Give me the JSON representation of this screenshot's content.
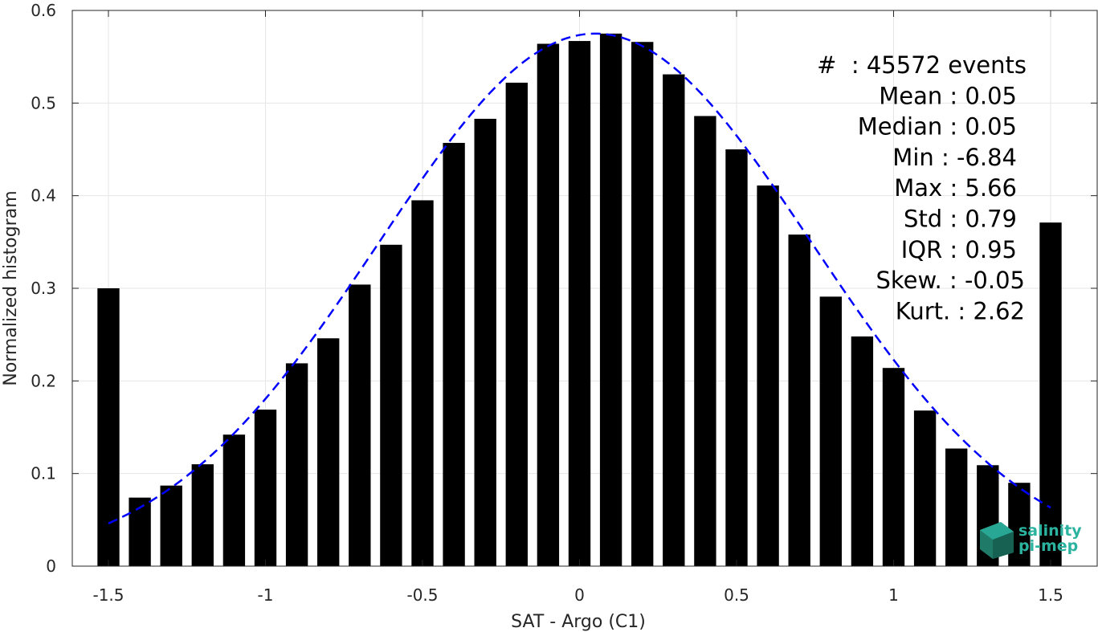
{
  "chart_data": {
    "type": "bar",
    "xlabel": "SAT - Argo (C1)",
    "ylabel": "Normalized histogram",
    "xlim": [
      -1.65,
      1.6
    ],
    "ylim": [
      0,
      0.6
    ],
    "xticks": [
      -1.5,
      -1,
      -0.5,
      0,
      0.5,
      1,
      1.5
    ],
    "xtick_labels": [
      "-1.5",
      "-1",
      "-0.5",
      "0",
      "0.5",
      "1",
      "1.5"
    ],
    "yticks": [
      0,
      0.1,
      0.2,
      0.3,
      0.4,
      0.5,
      0.6
    ],
    "ytick_labels": [
      "0",
      "0.1",
      "0.2",
      "0.3",
      "0.4",
      "0.5",
      "0.6"
    ],
    "grid": true,
    "bar_color": "#000000",
    "bin_centers": [
      -1.5,
      -1.4,
      -1.3,
      -1.2,
      -1.1,
      -1.0,
      -0.9,
      -0.8,
      -0.7,
      -0.6,
      -0.5,
      -0.4,
      -0.3,
      -0.2,
      -0.1,
      0.0,
      0.1,
      0.2,
      0.3,
      0.4,
      0.5,
      0.6,
      0.7,
      0.8,
      0.9,
      1.0,
      1.1,
      1.2,
      1.3,
      1.4,
      1.5
    ],
    "values": [
      0.3,
      0.074,
      0.087,
      0.11,
      0.142,
      0.169,
      0.219,
      0.246,
      0.304,
      0.347,
      0.395,
      0.457,
      0.483,
      0.522,
      0.564,
      0.567,
      0.575,
      0.566,
      0.531,
      0.486,
      0.45,
      0.411,
      0.358,
      0.291,
      0.248,
      0.214,
      0.168,
      0.127,
      0.109,
      0.09,
      0.371
    ],
    "fit_curve": {
      "type": "gaussian",
      "color": "#0000ff",
      "style": "dashed",
      "mean": 0.05,
      "std": 0.69,
      "peak": 0.575,
      "x_range": [
        -1.5,
        1.5
      ]
    },
    "stats_lines": [
      "#  : 45572 events",
      "Mean : 0.05",
      "Median : 0.05",
      "Min : -6.84",
      "Max : 5.66",
      "Std : 0.79",
      "IQR : 0.95",
      "Skew. : -0.05",
      "Kurt. : 2.62"
    ],
    "logo": {
      "line1": "salinity",
      "line2": "pi-mep",
      "color": "#2bb3a0"
    }
  }
}
